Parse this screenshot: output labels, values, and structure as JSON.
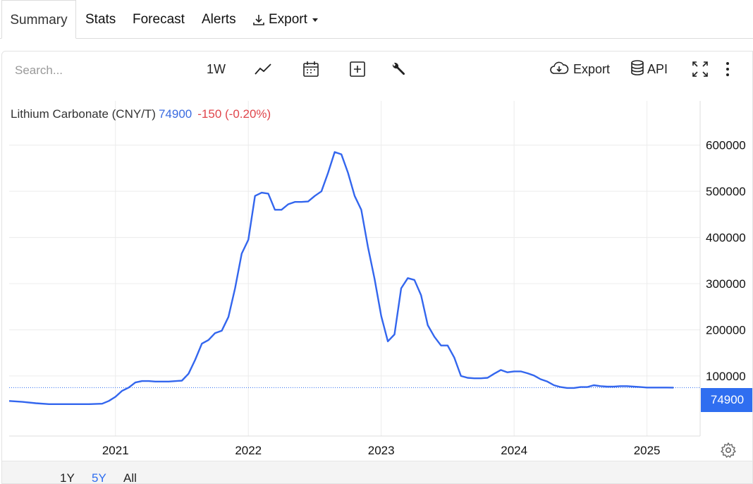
{
  "tabs": {
    "summary": "Summary",
    "stats": "Stats",
    "forecast": "Forecast",
    "alerts": "Alerts",
    "export": "Export"
  },
  "toolbar": {
    "search_placeholder": "Search...",
    "interval": "1W",
    "export_label": "Export",
    "api_label": "API",
    "icons": [
      "line-chart-icon",
      "calendar-icon",
      "add-box-icon",
      "wrench-icon",
      "cloud-download-icon",
      "database-icon",
      "fullscreen-icon",
      "more-vertical-icon"
    ]
  },
  "ranges": [
    "1Y",
    "5Y",
    "All"
  ],
  "selected_range": "5Y",
  "colors": {
    "line": "#3366ee",
    "accent": "#2f6ef0",
    "down": "#e0454b"
  },
  "chart_data": {
    "type": "line",
    "title": "Lithium Carbonate (CNY/T)",
    "last_price": "74900",
    "change": "-150 (-0.20%)",
    "last_value": 74900,
    "ylim": [
      -30000,
      650000
    ],
    "yticks": [
      100000,
      200000,
      300000,
      400000,
      500000,
      600000
    ],
    "xticks": [
      "2021",
      "2022",
      "2023",
      "2024",
      "2025"
    ],
    "xlim": [
      2020.2,
      2025.4
    ],
    "grid": true,
    "series": [
      {
        "x": [
          2020.2,
          2020.3,
          2020.4,
          2020.5,
          2020.6,
          2020.8,
          2020.9,
          2020.95,
          2021.0,
          2021.05,
          2021.1,
          2021.15,
          2021.2,
          2021.25,
          2021.3,
          2021.4,
          2021.5,
          2021.55,
          2021.6,
          2021.65,
          2021.7,
          2021.75,
          2021.8,
          2021.85,
          2021.9,
          2021.95,
          2022.0,
          2022.05,
          2022.1,
          2022.15,
          2022.2,
          2022.25,
          2022.3,
          2022.35,
          2022.4,
          2022.45,
          2022.5,
          2022.55,
          2022.6,
          2022.65,
          2022.7,
          2022.75,
          2022.8,
          2022.85,
          2022.9,
          2022.95,
          2023.0,
          2023.05,
          2023.1,
          2023.15,
          2023.2,
          2023.25,
          2023.3,
          2023.35,
          2023.4,
          2023.45,
          2023.5,
          2023.55,
          2023.6,
          2023.65,
          2023.7,
          2023.75,
          2023.8,
          2023.85,
          2023.9,
          2023.95,
          2024.0,
          2024.05,
          2024.1,
          2024.15,
          2024.2,
          2024.25,
          2024.3,
          2024.35,
          2024.4,
          2024.45,
          2024.5,
          2024.55,
          2024.6,
          2024.65,
          2024.7,
          2024.75,
          2024.8,
          2024.85,
          2024.9,
          2024.95,
          2025.0,
          2025.05,
          2025.1,
          2025.15,
          2025.2
        ],
        "values": [
          46000,
          44000,
          41000,
          39000,
          39000,
          39000,
          40000,
          46000,
          55000,
          68000,
          75000,
          86000,
          89000,
          89000,
          88000,
          88000,
          90000,
          105000,
          135000,
          170000,
          178000,
          193000,
          198000,
          228000,
          290000,
          365000,
          395000,
          490000,
          497000,
          495000,
          460000,
          460000,
          472000,
          477000,
          477000,
          478000,
          490000,
          500000,
          540000,
          585000,
          580000,
          540000,
          490000,
          460000,
          380000,
          310000,
          230000,
          175000,
          190000,
          290000,
          312000,
          308000,
          275000,
          210000,
          185000,
          166000,
          166000,
          140000,
          100000,
          96000,
          95000,
          95000,
          96000,
          105000,
          113000,
          108000,
          110000,
          110000,
          106000,
          101000,
          93000,
          88000,
          80000,
          76000,
          74000,
          74000,
          76000,
          76000,
          80000,
          78000,
          77000,
          77000,
          78000,
          78000,
          77000,
          76000,
          75000,
          75000,
          75000,
          75000,
          74900
        ]
      }
    ]
  }
}
